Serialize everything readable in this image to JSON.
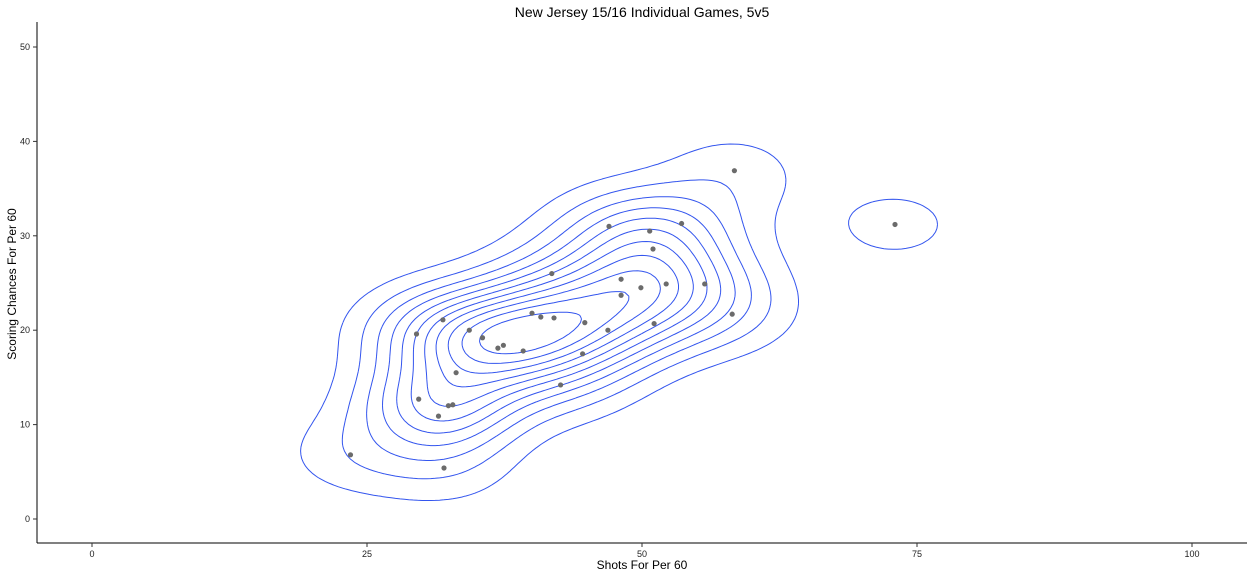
{
  "chart_data": {
    "type": "scatter",
    "title": "New Jersey 15/16 Individual Games, 5v5",
    "xlabel": "Shots For Per 60",
    "ylabel": "Scoring Chances For Per 60",
    "xlim": [
      0,
      100
    ],
    "ylim": [
      0,
      50
    ],
    "xticks": [
      0,
      25,
      50,
      75,
      100
    ],
    "yticks": [
      0,
      10,
      20,
      30,
      40,
      50
    ],
    "grid": false,
    "overlay": "2d density contours",
    "colors": {
      "points": "#6b6b6b",
      "contours": "#3355ee"
    },
    "points": [
      {
        "x": 23.5,
        "y": 6.8
      },
      {
        "x": 29.5,
        "y": 19.6
      },
      {
        "x": 29.7,
        "y": 12.7
      },
      {
        "x": 31.5,
        "y": 10.9
      },
      {
        "x": 31.9,
        "y": 21.1
      },
      {
        "x": 32.0,
        "y": 5.4
      },
      {
        "x": 32.4,
        "y": 12.0
      },
      {
        "x": 32.8,
        "y": 12.1
      },
      {
        "x": 33.1,
        "y": 15.5
      },
      {
        "x": 34.3,
        "y": 20.0
      },
      {
        "x": 35.5,
        "y": 19.2
      },
      {
        "x": 36.9,
        "y": 18.1
      },
      {
        "x": 37.4,
        "y": 18.4
      },
      {
        "x": 39.2,
        "y": 17.8
      },
      {
        "x": 40.0,
        "y": 21.8
      },
      {
        "x": 40.8,
        "y": 21.4
      },
      {
        "x": 41.8,
        "y": 26.0
      },
      {
        "x": 42.0,
        "y": 21.3
      },
      {
        "x": 42.6,
        "y": 14.2
      },
      {
        "x": 44.6,
        "y": 17.5
      },
      {
        "x": 44.8,
        "y": 20.8
      },
      {
        "x": 46.9,
        "y": 20.0
      },
      {
        "x": 47.0,
        "y": 31.0
      },
      {
        "x": 48.1,
        "y": 23.7
      },
      {
        "x": 48.1,
        "y": 25.4
      },
      {
        "x": 49.9,
        "y": 24.5
      },
      {
        "x": 50.7,
        "y": 30.5
      },
      {
        "x": 51.0,
        "y": 28.6
      },
      {
        "x": 51.1,
        "y": 20.7
      },
      {
        "x": 52.2,
        "y": 24.9
      },
      {
        "x": 53.6,
        "y": 31.3
      },
      {
        "x": 55.7,
        "y": 24.9
      },
      {
        "x": 58.2,
        "y": 21.7
      },
      {
        "x": 58.4,
        "y": 36.9
      },
      {
        "x": 73.0,
        "y": 31.2
      }
    ]
  }
}
